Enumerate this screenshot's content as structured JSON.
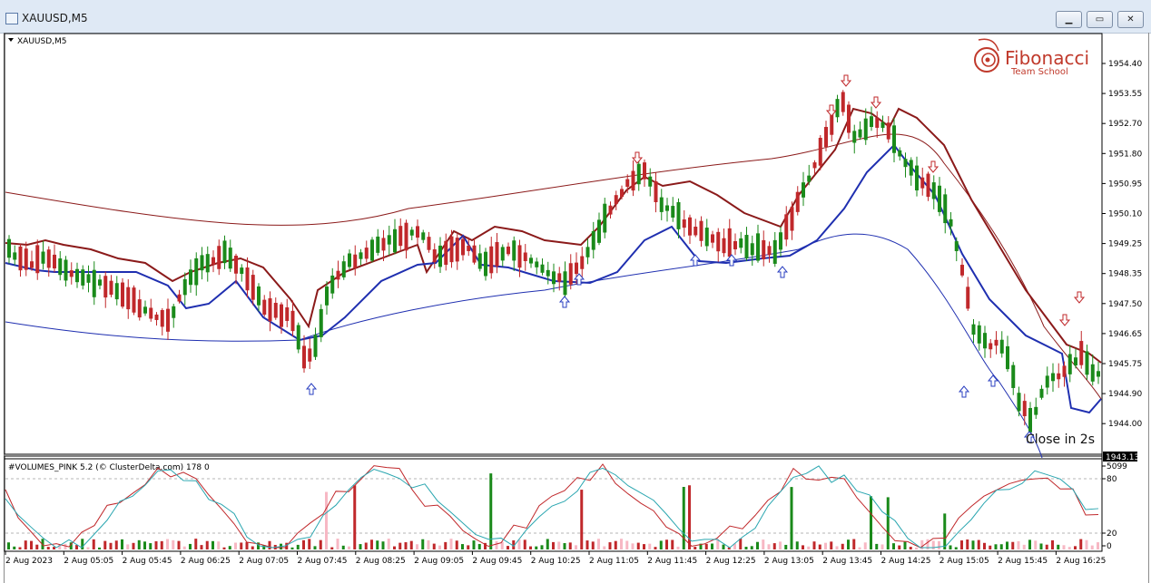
{
  "window": {
    "title": "XAUUSD,M5",
    "symbol_label": "XAUUSD,M5"
  },
  "logo": {
    "name": "Fibonacci",
    "tagline": "Team School"
  },
  "price_axis": {
    "labels": [
      "1954.40",
      "1953.55",
      "1952.70",
      "1951.80",
      "1950.95",
      "1950.10",
      "1949.25",
      "1948.35",
      "1947.50",
      "1946.65",
      "1945.75",
      "1944.90",
      "1944.00"
    ],
    "current_price": "1943.13"
  },
  "indicator": {
    "title": "#VOLUMES_PINK 5.2 (© ClusterDelta.com) 178 0",
    "axis_labels": [
      "5099",
      "80",
      "20",
      "0"
    ]
  },
  "time_axis": {
    "labels": [
      "2 Aug 2023",
      "2 Aug 05:05",
      "2 Aug 05:45",
      "2 Aug 06:25",
      "2 Aug 07:05",
      "2 Aug 07:45",
      "2 Aug 08:25",
      "2 Aug 09:05",
      "2 Aug 09:45",
      "2 Aug 10:25",
      "2 Aug 11:05",
      "2 Aug 11:45",
      "2 Aug 12:25",
      "2 Aug 13:05",
      "2 Aug 13:45",
      "2 Aug 14:25",
      "2 Aug 15:05",
      "2 Aug 15:45",
      "2 Aug 16:25"
    ]
  },
  "overlay": {
    "close_notice": "Close in 2s"
  },
  "colors": {
    "bull": "#1a8a1a",
    "bear": "#c0282b",
    "upper_band": "#8b1a1a",
    "lower_band": "#1f2fb0",
    "volume_pink": "#f7b8c4"
  }
}
